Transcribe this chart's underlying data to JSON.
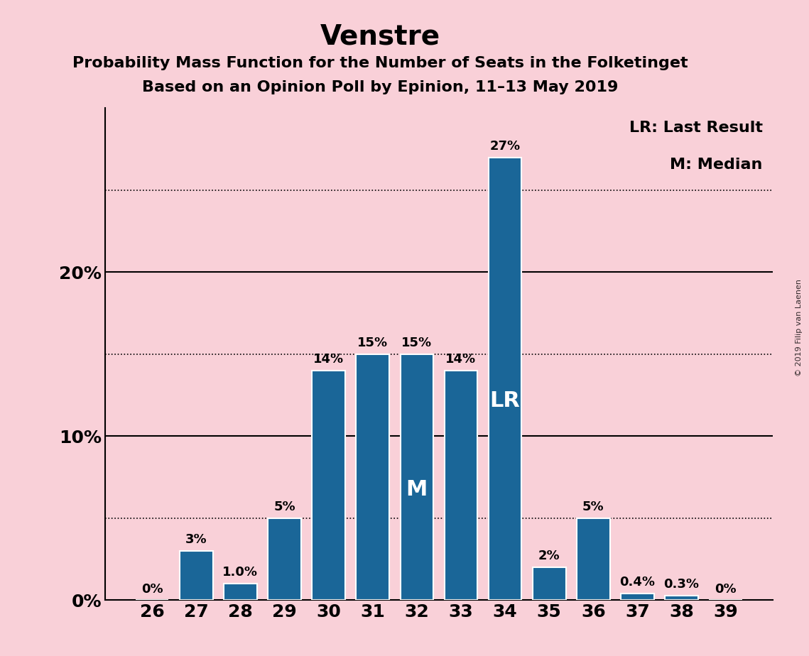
{
  "title": "Venstre",
  "subtitle1": "Probability Mass Function for the Number of Seats in the Folketinget",
  "subtitle2": "Based on an Opinion Poll by Epinion, 11–13 May 2019",
  "categories": [
    26,
    27,
    28,
    29,
    30,
    31,
    32,
    33,
    34,
    35,
    36,
    37,
    38,
    39
  ],
  "values": [
    0.0,
    3.0,
    1.0,
    5.0,
    14.0,
    15.0,
    15.0,
    14.0,
    27.0,
    2.0,
    5.0,
    0.4,
    0.3,
    0.0
  ],
  "labels": [
    "0%",
    "3%",
    "1.0%",
    "5%",
    "14%",
    "15%",
    "15%",
    "14%",
    "27%",
    "2%",
    "5%",
    "0.4%",
    "0.3%",
    "0%"
  ],
  "bar_color": "#1a6698",
  "background_color": "#f9d0d8",
  "ylim": [
    0,
    30
  ],
  "solid_yticks": [
    10,
    20
  ],
  "dotted_yticks": [
    5,
    15,
    25
  ],
  "labeled_yticks": [
    0,
    10,
    20
  ],
  "ytick_labels": [
    "0%",
    "10%",
    "20%"
  ],
  "median_bar": 32,
  "lr_bar": 34,
  "legend_lr": "LR: Last Result",
  "legend_m": "M: Median",
  "watermark": "© 2019 Filip van Laenen",
  "title_fontsize": 28,
  "subtitle_fontsize": 16,
  "label_fontsize": 13,
  "axis_tick_fontsize": 18,
  "legend_fontsize": 16,
  "bar_width": 0.75,
  "bar_edgecolor": "white",
  "bar_linewidth": 1.5
}
